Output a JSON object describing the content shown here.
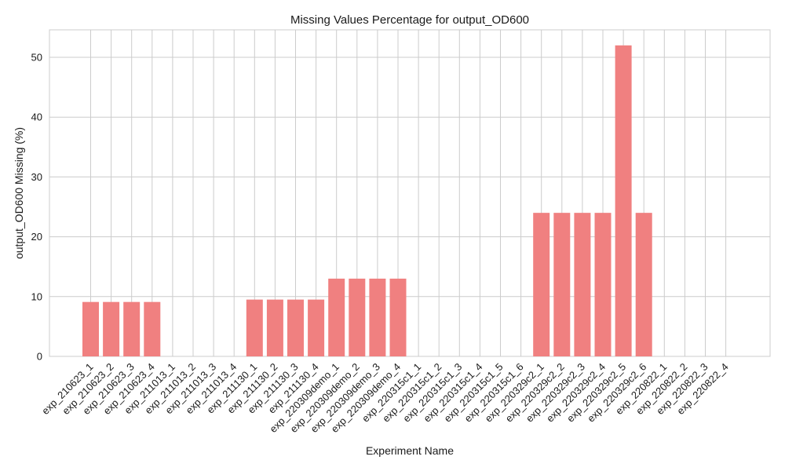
{
  "chart_data": {
    "type": "bar",
    "title": "Missing Values Percentage for output_OD600",
    "xlabel": "Experiment Name",
    "ylabel": "output_OD600 Missing (%)",
    "ylim": [
      0,
      54.6
    ],
    "yticks": [
      0,
      10,
      20,
      30,
      40,
      50
    ],
    "grid": true,
    "bar_color": "#f08080",
    "categories": [
      "exp_210623_1",
      "exp_210623_2",
      "exp_210623_3",
      "exp_210623_4",
      "exp_211013_1",
      "exp_211013_2",
      "exp_211013_3",
      "exp_211013_4",
      "exp_211130_1",
      "exp_211130_2",
      "exp_211130_3",
      "exp_211130_4",
      "exp_220309demo_1",
      "exp_220309demo_2",
      "exp_220309demo_3",
      "exp_220309demo_4",
      "exp_220315c1_1",
      "exp_220315c1_2",
      "exp_220315c1_3",
      "exp_220315c1_4",
      "exp_220315c1_5",
      "exp_220315c1_6",
      "exp_220329c2_1",
      "exp_220329c2_2",
      "exp_220329c2_3",
      "exp_220329c2_4",
      "exp_220329c2_5",
      "exp_220329c2_6",
      "exp_220822_1",
      "exp_220822_2",
      "exp_220822_3",
      "exp_220822_4"
    ],
    "values": [
      9.1,
      9.1,
      9.1,
      9.1,
      0,
      0,
      0,
      0,
      9.5,
      9.5,
      9.5,
      9.5,
      13.0,
      13.0,
      13.0,
      13.0,
      0,
      0,
      0,
      0,
      0,
      0,
      24.0,
      24.0,
      24.0,
      24.0,
      52.0,
      24.0,
      0,
      0,
      0,
      0
    ]
  }
}
